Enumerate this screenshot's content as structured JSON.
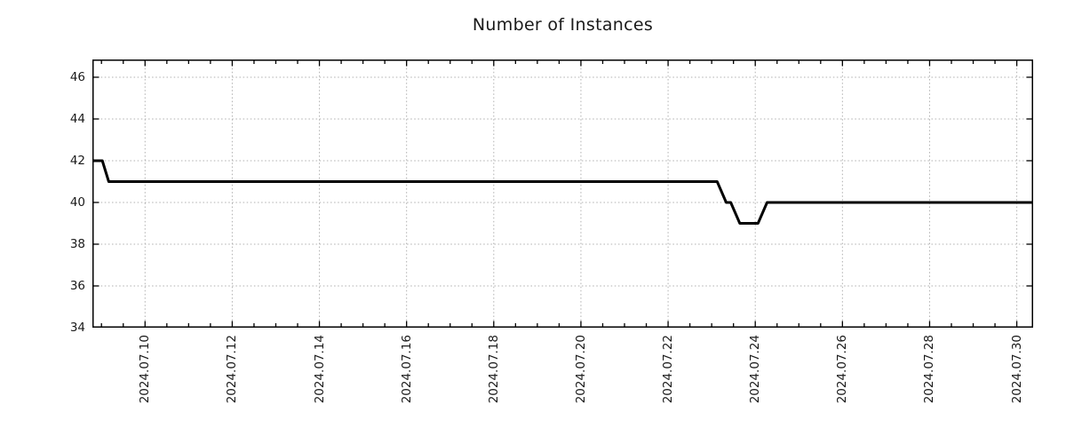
{
  "title": "Number of Instances",
  "style": {
    "background": "#ffffff",
    "line_color": "#000000",
    "grid_color": "#b0b0b0",
    "axis_color": "#000000",
    "text_color": "#1a1a1a"
  },
  "chart_data": {
    "type": "line",
    "title": "Number of Instances",
    "xlabel": "",
    "ylabel": "",
    "grid": true,
    "legend": "none",
    "ylim": [
      34,
      46.85
    ],
    "y_ticks": {
      "values": [
        34,
        36,
        38,
        40,
        42,
        44,
        46
      ],
      "labels": [
        "34",
        "36",
        "38",
        "40",
        "42",
        "44",
        "46"
      ]
    },
    "x_domain": [
      "2024-07-08 19:00",
      "2024-07-30 09:00"
    ],
    "x_ticks": [
      {
        "t": "2024-07-10 00:00",
        "label": "2024.07.10"
      },
      {
        "t": "2024-07-12 00:00",
        "label": "2024.07.12"
      },
      {
        "t": "2024-07-14 00:00",
        "label": "2024.07.14"
      },
      {
        "t": "2024-07-16 00:00",
        "label": "2024.07.16"
      },
      {
        "t": "2024-07-18 00:00",
        "label": "2024.07.18"
      },
      {
        "t": "2024-07-20 00:00",
        "label": "2024.07.20"
      },
      {
        "t": "2024-07-22 00:00",
        "label": "2024.07.22"
      },
      {
        "t": "2024-07-24 00:00",
        "label": "2024.07.24"
      },
      {
        "t": "2024-07-26 00:00",
        "label": "2024.07.26"
      },
      {
        "t": "2024-07-28 00:00",
        "label": "2024.07.28"
      },
      {
        "t": "2024-07-30 00:00",
        "label": "2024.07.30"
      }
    ],
    "x_minor_interval_hours": 12,
    "series": [
      {
        "name": "Number of Instances",
        "color": "#000000",
        "stroke_width": 3,
        "points": [
          [
            "2024-07-08 19:00",
            42
          ],
          [
            "2024-07-09 00:30",
            42
          ],
          [
            "2024-07-09 04:00",
            41
          ],
          [
            "2024-07-23 03:00",
            41
          ],
          [
            "2024-07-23 08:00",
            40
          ],
          [
            "2024-07-23 10:30",
            40
          ],
          [
            "2024-07-23 15:30",
            39
          ],
          [
            "2024-07-24 01:30",
            39
          ],
          [
            "2024-07-24 06:30",
            40
          ],
          [
            "2024-07-30 09:00",
            40
          ]
        ]
      }
    ]
  }
}
